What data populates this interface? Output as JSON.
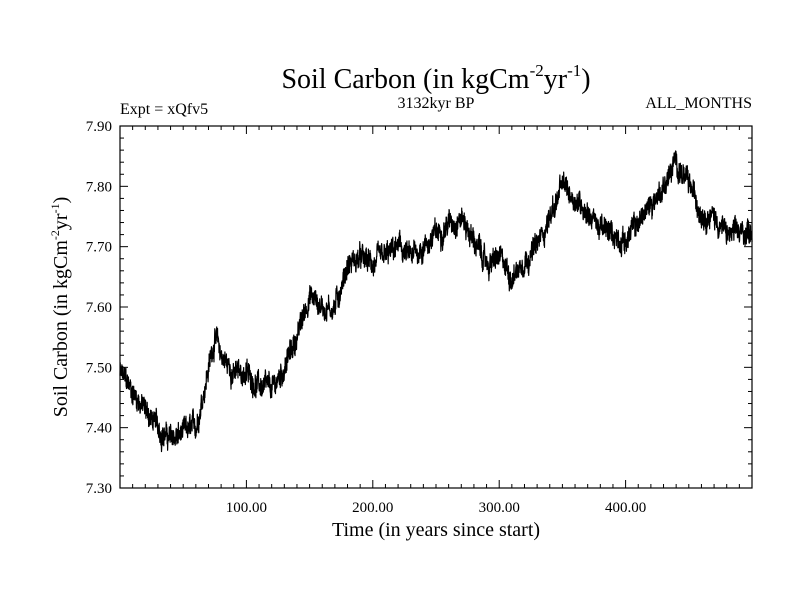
{
  "chart_data": {
    "type": "line",
    "title_main": "Soil Carbon (in kgCm",
    "title_sup1": "-2",
    "title_mid": "yr",
    "title_sup2": "-1",
    "title_end": ")",
    "subtitle_left": "Expt = xQfv5",
    "subtitle_center": "3132kyr BP",
    "subtitle_right": "ALL_MONTHS",
    "xlabel": "Time (in years since start)",
    "ylabel_main": "Soil Carbon (in kgCm",
    "ylabel_sup1": "-2",
    "ylabel_mid": "yr",
    "ylabel_sup2": "-1",
    "ylabel_end": ")",
    "xlim": [
      0,
      500
    ],
    "ylim": [
      7.3,
      7.9
    ],
    "x_ticks": [
      100,
      200,
      300,
      400
    ],
    "x_tick_labels": [
      "100.00",
      "200.00",
      "300.00",
      "400.00"
    ],
    "y_ticks": [
      7.3,
      7.4,
      7.5,
      7.6,
      7.7,
      7.8,
      7.9
    ],
    "y_tick_labels": [
      "7.30",
      "7.40",
      "7.50",
      "7.60",
      "7.70",
      "7.80",
      "7.90"
    ],
    "series": [
      {
        "name": "Soil Carbon",
        "color": "#000000",
        "x": [
          0,
          10,
          20,
          30,
          40,
          50,
          60,
          70,
          75,
          80,
          90,
          100,
          110,
          120,
          130,
          140,
          150,
          160,
          170,
          180,
          190,
          200,
          210,
          220,
          230,
          240,
          250,
          260,
          270,
          280,
          290,
          300,
          310,
          320,
          330,
          340,
          350,
          355,
          360,
          370,
          380,
          390,
          400,
          410,
          420,
          430,
          440,
          450,
          460,
          470,
          480,
          490,
          500
        ],
        "values": [
          7.49,
          7.46,
          7.43,
          7.4,
          7.38,
          7.39,
          7.4,
          7.5,
          7.55,
          7.52,
          7.49,
          7.49,
          7.47,
          7.46,
          7.5,
          7.55,
          7.62,
          7.6,
          7.6,
          7.67,
          7.68,
          7.67,
          7.68,
          7.7,
          7.68,
          7.7,
          7.72,
          7.74,
          7.75,
          7.71,
          7.67,
          7.68,
          7.65,
          7.68,
          7.7,
          7.75,
          7.8,
          7.79,
          7.78,
          7.76,
          7.73,
          7.72,
          7.71,
          7.74,
          7.77,
          7.8,
          7.84,
          7.8,
          7.76,
          7.75,
          7.72,
          7.72,
          7.73
        ]
      }
    ]
  }
}
